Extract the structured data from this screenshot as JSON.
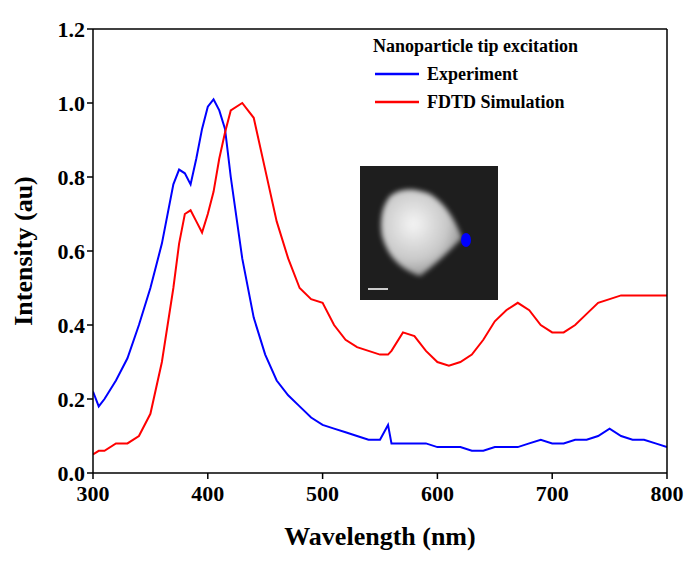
{
  "chart_data": {
    "type": "line",
    "xlabel": "Wavelength (nm)",
    "ylabel": "Intensity (au)",
    "legend_title": "Nanoparticle tip excitation",
    "legend": "upper right",
    "grid": false,
    "xlim": [
      300,
      800
    ],
    "xticks": [
      300,
      400,
      500,
      600,
      700,
      800
    ],
    "ylim": [
      0,
      1.2
    ],
    "yticks": [
      {
        "value": 0,
        "label": "0.0"
      },
      {
        "value": 0.2,
        "label": "0.2"
      },
      {
        "value": 0.4,
        "label": "0.4"
      },
      {
        "value": 0.6,
        "label": "0.6"
      },
      {
        "value": 0.8,
        "label": "0.8"
      },
      {
        "value": 1.0,
        "label": "1.0"
      },
      {
        "value": 1.2,
        "label": "1.2"
      }
    ],
    "x": [
      300,
      305,
      310,
      320,
      330,
      340,
      350,
      360,
      370,
      375,
      380,
      385,
      390,
      395,
      400,
      405,
      410,
      415,
      420,
      430,
      440,
      450,
      460,
      470,
      480,
      490,
      500,
      510,
      520,
      530,
      540,
      550,
      557,
      560,
      570,
      580,
      590,
      600,
      610,
      620,
      630,
      640,
      650,
      660,
      670,
      680,
      690,
      700,
      710,
      720,
      730,
      740,
      750,
      760,
      770,
      780,
      790,
      800
    ],
    "series": [
      {
        "name": "Experiment",
        "color": "#0000ff",
        "values": [
          0.22,
          0.18,
          0.2,
          0.25,
          0.31,
          0.4,
          0.5,
          0.62,
          0.78,
          0.82,
          0.81,
          0.78,
          0.85,
          0.93,
          0.99,
          1.01,
          0.98,
          0.93,
          0.8,
          0.58,
          0.42,
          0.32,
          0.25,
          0.21,
          0.18,
          0.15,
          0.13,
          0.12,
          0.11,
          0.1,
          0.09,
          0.09,
          0.13,
          0.08,
          0.08,
          0.08,
          0.08,
          0.07,
          0.07,
          0.07,
          0.06,
          0.06,
          0.07,
          0.07,
          0.07,
          0.08,
          0.09,
          0.08,
          0.08,
          0.09,
          0.09,
          0.1,
          0.12,
          0.1,
          0.09,
          0.09,
          0.08,
          0.07
        ]
      },
      {
        "name": "FDTD Simulation",
        "color": "#ff0000",
        "values": [
          0.05,
          0.06,
          0.06,
          0.08,
          0.08,
          0.1,
          0.16,
          0.3,
          0.5,
          0.62,
          0.7,
          0.71,
          0.68,
          0.65,
          0.7,
          0.76,
          0.85,
          0.92,
          0.98,
          1.0,
          0.96,
          0.82,
          0.68,
          0.58,
          0.5,
          0.47,
          0.46,
          0.4,
          0.36,
          0.34,
          0.33,
          0.32,
          0.32,
          0.33,
          0.38,
          0.37,
          0.33,
          0.3,
          0.29,
          0.3,
          0.32,
          0.36,
          0.41,
          0.44,
          0.46,
          0.44,
          0.4,
          0.38,
          0.38,
          0.4,
          0.43,
          0.46,
          0.47,
          0.48,
          0.48,
          0.48,
          0.48,
          0.48
        ]
      }
    ]
  }
}
